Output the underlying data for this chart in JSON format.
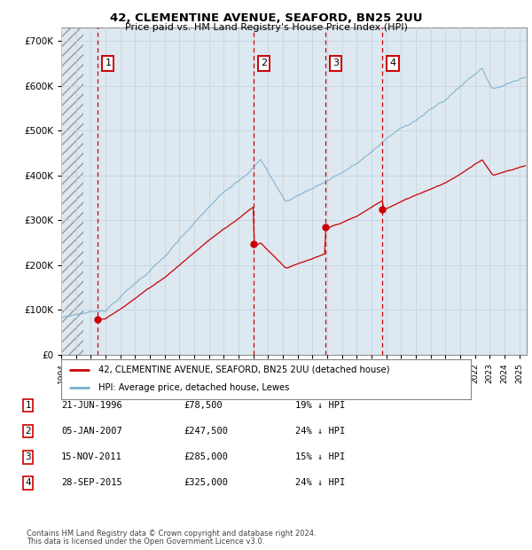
{
  "title1": "42, CLEMENTINE AVENUE, SEAFORD, BN25 2UU",
  "title2": "Price paid vs. HM Land Registry's House Price Index (HPI)",
  "ytick_values": [
    0,
    100000,
    200000,
    300000,
    400000,
    500000,
    600000,
    700000
  ],
  "ylim": [
    0,
    730000
  ],
  "xlim_start": 1994.0,
  "xlim_end": 2025.5,
  "purchases": [
    {
      "label": "1",
      "date_x": 1996.47,
      "price": 78500
    },
    {
      "label": "2",
      "date_x": 2007.01,
      "price": 247500
    },
    {
      "label": "3",
      "date_x": 2011.87,
      "price": 285000
    },
    {
      "label": "4",
      "date_x": 2015.74,
      "price": 325000
    }
  ],
  "legend_line1": "42, CLEMENTINE AVENUE, SEAFORD, BN25 2UU (detached house)",
  "legend_line2": "HPI: Average price, detached house, Lewes",
  "table_rows": [
    {
      "num": "1",
      "date": "21-JUN-1996",
      "price": "£78,500",
      "hpi": "19% ↓ HPI"
    },
    {
      "num": "2",
      "date": "05-JAN-2007",
      "price": "£247,500",
      "hpi": "24% ↓ HPI"
    },
    {
      "num": "3",
      "date": "15-NOV-2011",
      "price": "£285,000",
      "hpi": "15% ↓ HPI"
    },
    {
      "num": "4",
      "date": "28-SEP-2015",
      "price": "£325,000",
      "hpi": "24% ↓ HPI"
    }
  ],
  "footnote1": "Contains HM Land Registry data © Crown copyright and database right 2024.",
  "footnote2": "This data is licensed under the Open Government Licence v3.0.",
  "grid_color": "#c8d4e0",
  "hpi_line_color": "#7aaed0",
  "price_line_color": "#cc0000",
  "vline_color": "#cc0000",
  "box_color": "#cc0000",
  "hatch_end_x": 1995.5,
  "chart_bg": "#dde8f0"
}
